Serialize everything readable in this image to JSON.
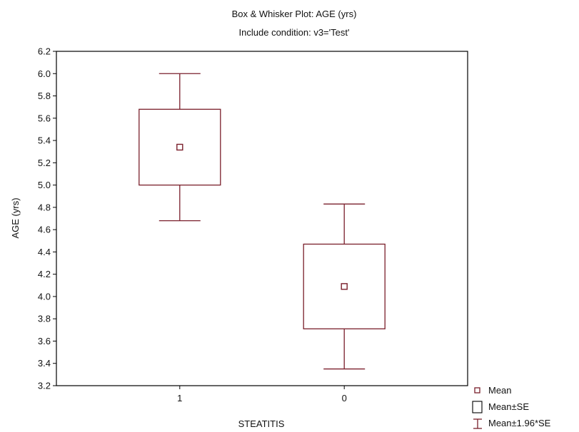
{
  "chart_data": {
    "type": "box",
    "title": "Box & Whisker Plot: AGE (yrs)",
    "subtitle": "Include condition: v3='Test'",
    "xlabel": "STEATITIS",
    "ylabel": "AGE (yrs)",
    "ylim": [
      3.2,
      6.2
    ],
    "yticks": [
      "3.2",
      "3.4",
      "3.6",
      "3.8",
      "4.0",
      "4.2",
      "4.4",
      "4.6",
      "4.8",
      "5.0",
      "5.2",
      "5.4",
      "5.6",
      "5.8",
      "6.0",
      "6.2"
    ],
    "categories": [
      "1",
      "0"
    ],
    "boxes": [
      {
        "category": "1",
        "mean": 5.34,
        "se_low": 5.0,
        "se_high": 5.68,
        "ci_low": 4.68,
        "ci_high": 6.0
      },
      {
        "category": "0",
        "mean": 4.09,
        "se_low": 3.71,
        "se_high": 4.47,
        "ci_low": 3.35,
        "ci_high": 4.83
      }
    ],
    "legend": {
      "position": "bottom-right",
      "entries": [
        "Mean",
        "Mean±SE",
        "Mean±1.96*SE"
      ]
    },
    "colors": {
      "stroke": "#7a1f2b",
      "axis": "#000000"
    },
    "grid": false
  }
}
